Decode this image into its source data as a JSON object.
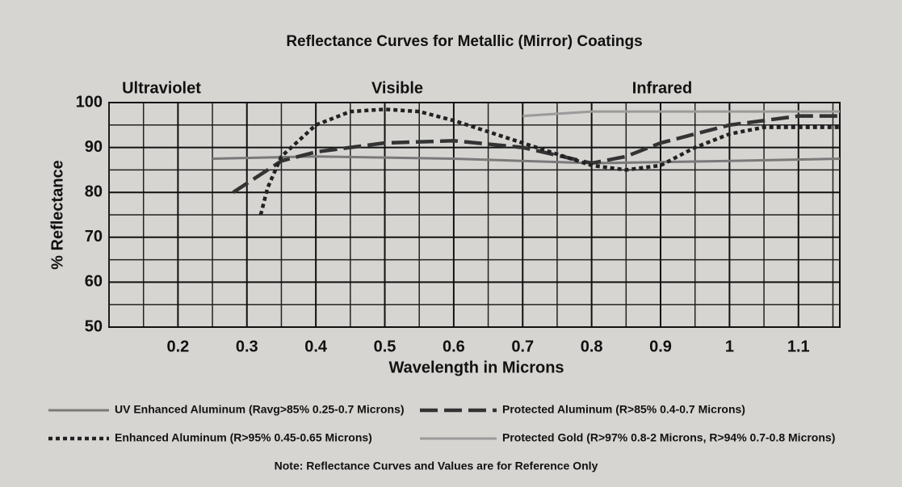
{
  "chart_data": {
    "type": "line",
    "title": "Reflectance Curves for Metallic (Mirror) Coatings",
    "annotations": [
      "Ultraviolet",
      "Visible",
      "Infrared"
    ],
    "x_label": "Wavelength in Microns",
    "y_label": "% Reflectance",
    "note": "Note: Reflectance Curves and Values are for Reference Only",
    "xlim": [
      0.1,
      1.16
    ],
    "ylim": [
      50,
      100
    ],
    "xticks": [
      0.2,
      0.3,
      0.4,
      0.5,
      0.6,
      0.7,
      0.8,
      0.9,
      1.0,
      1.1
    ],
    "yticks": [
      50,
      60,
      70,
      80,
      90,
      100
    ],
    "grid": true,
    "series": [
      {
        "name": "UV Enhanced Aluminum (Ravg>85% 0.25-0.7 Microns)",
        "color": "#7a7a7a",
        "x": [
          0.25,
          0.4,
          0.6,
          0.8,
          1.0,
          1.16
        ],
        "values": [
          87.5,
          88,
          87.5,
          86.5,
          87,
          87.5
        ]
      },
      {
        "name": "Protected Aluminum (R>85% 0.4-0.7 Microns)",
        "color": "#333333",
        "x": [
          0.28,
          0.35,
          0.4,
          0.5,
          0.6,
          0.7,
          0.8,
          0.85,
          0.9,
          1.0,
          1.1,
          1.16
        ],
        "values": [
          80,
          87,
          89,
          91,
          91.5,
          90,
          86.5,
          88,
          91,
          95,
          97,
          97
        ]
      },
      {
        "name": "Enhanced Aluminum (R>95% 0.45-0.65 Microns)",
        "color": "#222222",
        "x": [
          0.32,
          0.33,
          0.35,
          0.4,
          0.45,
          0.5,
          0.55,
          0.6,
          0.7,
          0.8,
          0.85,
          0.9,
          0.95,
          1.0,
          1.05,
          1.16
        ],
        "values": [
          75,
          81,
          88,
          95,
          98,
          98.5,
          98,
          96,
          91,
          86,
          85,
          86,
          90,
          93,
          94.5,
          94.5
        ]
      },
      {
        "name": "Protected Gold (R>97% 0.8-2 Microns, R>94% 0.7-0.8 Microns)",
        "color": "#9a9a9a",
        "x": [
          0.7,
          0.8,
          1.0,
          1.16
        ],
        "values": [
          97,
          98,
          98,
          98
        ]
      }
    ]
  }
}
